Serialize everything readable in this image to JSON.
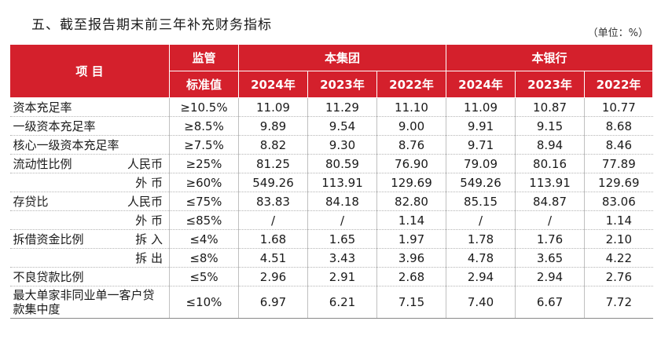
{
  "title": "五、截至报告期末前三年补充财务指标",
  "unit": "（单位：%）",
  "header": {
    "item": "项 目",
    "reg_top": "监管",
    "reg_bottom": "标准值",
    "group": "本集团",
    "bank": "本银行",
    "years": [
      "2024年",
      "2023年",
      "2022年",
      "2024年",
      "2023年",
      "2022年"
    ]
  },
  "rows": [
    {
      "main": "资本充足率",
      "sub": "",
      "std": "≥10.5%",
      "vals": [
        "11.09",
        "11.29",
        "11.10",
        "11.09",
        "10.87",
        "10.77"
      ]
    },
    {
      "main": "一级资本充足率",
      "sub": "",
      "std": "≥8.5%",
      "vals": [
        "9.89",
        "9.54",
        "9.00",
        "9.91",
        "9.15",
        "8.68"
      ]
    },
    {
      "main": "核心一级资本充足率",
      "sub": "",
      "std": "≥7.5%",
      "vals": [
        "8.82",
        "9.30",
        "8.76",
        "9.71",
        "8.94",
        "8.46"
      ]
    },
    {
      "main": "流动性比例",
      "sub": "人民币",
      "std": "≥25%",
      "vals": [
        "81.25",
        "80.59",
        "76.90",
        "79.09",
        "80.16",
        "77.89"
      ]
    },
    {
      "main": "",
      "sub": "外 币",
      "std": "≥60%",
      "vals": [
        "549.26",
        "113.91",
        "129.69",
        "549.26",
        "113.91",
        "129.69"
      ]
    },
    {
      "main": "存贷比",
      "sub": "人民币",
      "std": "≤75%",
      "vals": [
        "83.83",
        "84.18",
        "82.80",
        "85.15",
        "84.87",
        "83.06"
      ]
    },
    {
      "main": "",
      "sub": "外 币",
      "std": "≤85%",
      "vals": [
        "/",
        "/",
        "1.14",
        "/",
        "/",
        "1.14"
      ]
    },
    {
      "main": "拆借资金比例",
      "sub": "拆 入",
      "std": "≤4%",
      "vals": [
        "1.68",
        "1.65",
        "1.97",
        "1.78",
        "1.76",
        "2.10"
      ]
    },
    {
      "main": "",
      "sub": "拆 出",
      "std": "≤8%",
      "vals": [
        "4.51",
        "3.43",
        "3.96",
        "4.78",
        "3.65",
        "4.22"
      ]
    },
    {
      "main": "不良贷款比例",
      "sub": "",
      "std": "≤5%",
      "vals": [
        "2.96",
        "2.91",
        "2.68",
        "2.94",
        "2.94",
        "2.76"
      ]
    },
    {
      "main": "最大单家非同业单一客户贷款集中度",
      "sub": "",
      "std": "≤10%",
      "vals": [
        "6.97",
        "6.21",
        "7.15",
        "7.40",
        "6.67",
        "7.72"
      ]
    }
  ]
}
